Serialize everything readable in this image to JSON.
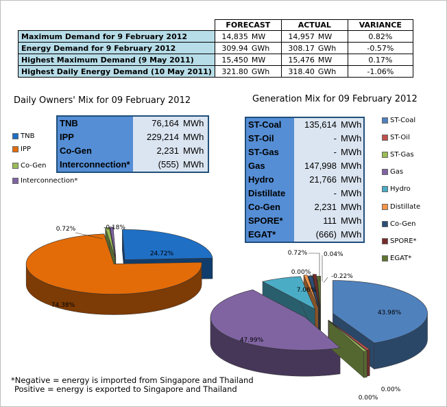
{
  "summary": {
    "headers": [
      "FORECAST",
      "ACTUAL",
      "VARIANCE"
    ],
    "rows": [
      {
        "label": "Maximum Demand for 9 February 2012",
        "forecast": "14,835",
        "forecast_unit": "MW",
        "actual": "14,957",
        "actual_unit": "MW",
        "variance": "0.82%"
      },
      {
        "label": "Energy Demand for 9 February 2012",
        "forecast": "309.94",
        "forecast_unit": "GWh",
        "actual": "308.17",
        "actual_unit": "GWh",
        "variance": "-0.57%"
      },
      {
        "label": "Highest Maximum Demand (9 May 2011)",
        "forecast": "15,450",
        "forecast_unit": "MW",
        "actual": "15,476",
        "actual_unit": "MW",
        "variance": "0.17%"
      },
      {
        "label": "Highest Daily Energy Demand (10 May 2011)",
        "forecast": "321.80",
        "forecast_unit": "GWh",
        "actual": "318.40",
        "actual_unit": "GWh",
        "variance": "-1.06%"
      }
    ]
  },
  "owners": {
    "title": "Daily Owners' Mix for 09 February 2012",
    "table": [
      {
        "name": "TNB",
        "value": "76,164",
        "unit": "MWh"
      },
      {
        "name": "IPP",
        "value": "229,214",
        "unit": "MWh"
      },
      {
        "name": "Co-Gen",
        "value": "2,231",
        "unit": "MWh"
      },
      {
        "name": "Interconnection*",
        "value": "(555)",
        "unit": "MWh"
      }
    ],
    "legend": [
      {
        "name": "TNB",
        "color": "#1f6fc5"
      },
      {
        "name": "IPP",
        "color": "#e36c09"
      },
      {
        "name": "Co-Gen",
        "color": "#9bbb59"
      },
      {
        "name": "Interconnection*",
        "color": "#8064a2"
      }
    ]
  },
  "generation": {
    "title": "Generation Mix for 09 February 2012",
    "table": [
      {
        "name": "ST-Coal",
        "value": "135,614",
        "unit": "MWh"
      },
      {
        "name": "ST-Oil",
        "value": "-",
        "unit": "MWh"
      },
      {
        "name": "ST-Gas",
        "value": "-",
        "unit": "MWh"
      },
      {
        "name": "Gas",
        "value": "147,998",
        "unit": "MWh"
      },
      {
        "name": "Hydro",
        "value": "21,766",
        "unit": "MWh"
      },
      {
        "name": "Distillate",
        "value": "-",
        "unit": "MWh"
      },
      {
        "name": "Co-Gen",
        "value": "2,231",
        "unit": "MWh"
      },
      {
        "name": "SPORE*",
        "value": "111",
        "unit": "MWh"
      },
      {
        "name": "EGAT*",
        "value": "(666)",
        "unit": "MWh"
      }
    ],
    "legend": [
      {
        "name": "ST-Coal",
        "color": "#4f81bd"
      },
      {
        "name": "ST-Oil",
        "color": "#c0504d"
      },
      {
        "name": "ST-Gas",
        "color": "#9bbb59"
      },
      {
        "name": "Gas",
        "color": "#8064a2"
      },
      {
        "name": "Hydro",
        "color": "#4bacc6"
      },
      {
        "name": "Distillate",
        "color": "#f79646"
      },
      {
        "name": "Co-Gen",
        "color": "#2c4d75"
      },
      {
        "name": "SPORE*",
        "color": "#772c2a"
      },
      {
        "name": "EGAT*",
        "color": "#5f7530"
      }
    ]
  },
  "chart_data": [
    {
      "type": "pie",
      "title": "Daily Owners' Mix for 09 February 2012",
      "categories": [
        "TNB",
        "IPP",
        "Co-Gen",
        "Interconnection*"
      ],
      "values": [
        24.72,
        74.38,
        0.72,
        -0.18
      ],
      "labels": [
        "24.72%",
        "74.38%",
        "0.72%",
        "-0.18%"
      ],
      "colors": [
        "#1f6fc5",
        "#e36c09",
        "#9bbb59",
        "#8064a2"
      ],
      "legend": "left"
    },
    {
      "type": "pie",
      "title": "Generation Mix for 09 February 2012",
      "categories": [
        "ST-Coal",
        "ST-Oil",
        "ST-Gas",
        "Gas",
        "Hydro",
        "Distillate",
        "Co-Gen",
        "SPORE*",
        "EGAT*"
      ],
      "values": [
        43.98,
        0.0,
        0.0,
        47.99,
        7.06,
        0.0,
        0.72,
        0.04,
        -0.22
      ],
      "labels": [
        "43.98%",
        "0.00%",
        "0.00%",
        "47.99%",
        "7.06%",
        "0.00%",
        "0.72%",
        "0.04%",
        "-0.22%"
      ],
      "colors": [
        "#4f81bd",
        "#c0504d",
        "#9bbb59",
        "#8064a2",
        "#4bacc6",
        "#f79646",
        "#2c4d75",
        "#772c2a",
        "#5f7530"
      ],
      "legend": "right"
    }
  ],
  "footnote": {
    "line1": "*Negative = energy is imported from Singapore and Thailand",
    "line2": "Positive = energy is exported to Singapore and Thailand"
  }
}
